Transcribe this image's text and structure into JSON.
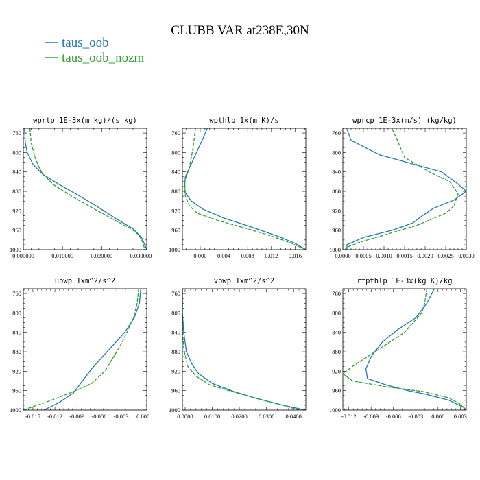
{
  "figure": {
    "title": "CLUBB VAR at238E,30N",
    "legend": [
      {
        "label": "taus_oob",
        "color": "#1f77b4",
        "dash": "solid"
      },
      {
        "label": "taus_oob_nozm",
        "color": "#2ca02c",
        "dash": "dashed"
      }
    ]
  },
  "chart_data": [
    {
      "type": "line",
      "title": "wprtp  1E-3x(m kg)/(s kg)",
      "xlim": [
        0,
        0.0315
      ],
      "ylim": [
        1000,
        750
      ],
      "y_reversed": true,
      "xticks": [
        0,
        0.01,
        0.02,
        0.03
      ],
      "xtick_labels": [
        "0.000000",
        "0.010000",
        "0.020000",
        "0.030000"
      ],
      "yticks": [
        760,
        800,
        840,
        880,
        920,
        960,
        1000
      ],
      "series": [
        {
          "name": "taus_oob",
          "points": [
            [
              0.0003,
              750
            ],
            [
              0.0005,
              780
            ],
            [
              0.001,
              800
            ],
            [
              0.0025,
              825
            ],
            [
              0.005,
              845
            ],
            [
              0.009,
              865
            ],
            [
              0.014,
              888
            ],
            [
              0.019,
              912
            ],
            [
              0.024,
              938
            ],
            [
              0.028,
              957
            ],
            [
              0.0302,
              975
            ],
            [
              0.031,
              990
            ],
            [
              0.0315,
              1000
            ]
          ]
        },
        {
          "name": "taus_oob_nozm",
          "points": [
            [
              0.0017,
              750
            ],
            [
              0.002,
              780
            ],
            [
              0.003,
              810
            ],
            [
              0.004,
              830
            ],
            [
              0.005,
              845
            ],
            [
              0.008,
              868
            ],
            [
              0.013,
              893
            ],
            [
              0.0185,
              918
            ],
            [
              0.0235,
              940
            ],
            [
              0.0275,
              957
            ],
            [
              0.0295,
              970
            ],
            [
              0.0305,
              985
            ],
            [
              0.031,
              1000
            ]
          ]
        }
      ]
    },
    {
      "type": "line",
      "title": "wpthlp  1x(m K)/s",
      "xlim": [
        -0.003,
        0.0178
      ],
      "ylim": [
        1000,
        750
      ],
      "y_reversed": true,
      "xticks": [
        0,
        0.004,
        0.008,
        0.012,
        0.016
      ],
      "xtick_labels": [
        "0.000",
        "0.004",
        "0.008",
        "0.012",
        "0.016"
      ],
      "yticks": [
        760,
        800,
        840,
        880,
        920,
        960,
        1000
      ],
      "series": [
        {
          "name": "taus_oob",
          "points": [
            [
              0.0012,
              750
            ],
            [
              0.0005,
              770
            ],
            [
              -0.001,
              810
            ],
            [
              -0.0025,
              850
            ],
            [
              -0.0027,
              880
            ],
            [
              -0.0015,
              900
            ],
            [
              0.0005,
              917
            ],
            [
              0.004,
              935
            ],
            [
              0.009,
              955
            ],
            [
              0.013,
              972
            ],
            [
              0.016,
              987
            ],
            [
              0.0178,
              1000
            ]
          ]
        },
        {
          "name": "taus_oob_nozm",
          "points": [
            [
              -0.0008,
              750
            ],
            [
              -0.0012,
              790
            ],
            [
              -0.0018,
              830
            ],
            [
              -0.0026,
              860
            ],
            [
              -0.0025,
              890
            ],
            [
              -0.0018,
              910
            ],
            [
              -0.0005,
              925
            ],
            [
              0.003,
              940
            ],
            [
              0.008,
              957
            ],
            [
              0.012,
              972
            ],
            [
              0.015,
              985
            ],
            [
              0.0178,
              1000
            ]
          ]
        }
      ]
    },
    {
      "type": "line",
      "title": "wprcp  1E-3x(m/s) (kg/kg)",
      "xlim": [
        0,
        0.003
      ],
      "ylim": [
        1000,
        750
      ],
      "y_reversed": true,
      "xticks": [
        0,
        0.0005,
        0.001,
        0.0015,
        0.002,
        0.0025,
        0.003
      ],
      "xtick_labels": [
        "0.0000",
        "0.0005",
        "0.0010",
        "0.0015",
        "0.0020",
        "0.0025",
        "0.0030"
      ],
      "yticks": [
        760,
        800,
        840,
        880,
        920,
        960,
        1000
      ],
      "series": [
        {
          "name": "taus_oob",
          "points": [
            [
              0.0001,
              752
            ],
            [
              0.0002,
              775
            ],
            [
              0.0009,
              805
            ],
            [
              0.0024,
              840
            ],
            [
              0.0028,
              865
            ],
            [
              0.003,
              880
            ],
            [
              0.0027,
              898
            ],
            [
              0.0022,
              915
            ],
            [
              0.0019,
              932
            ],
            [
              0.0017,
              945
            ],
            [
              0.0012,
              960
            ],
            [
              0.0005,
              975
            ],
            [
              0.0001,
              990
            ],
            [
              0.0001,
              1000
            ]
          ]
        },
        {
          "name": "taus_oob_nozm",
          "points": [
            [
              0.0012,
              752
            ],
            [
              0.0013,
              770
            ],
            [
              0.0015,
              810
            ],
            [
              0.0021,
              840
            ],
            [
              0.0026,
              860
            ],
            [
              0.0028,
              885
            ],
            [
              0.0027,
              910
            ],
            [
              0.0025,
              925
            ],
            [
              0.0018,
              950
            ],
            [
              0.001,
              970
            ],
            [
              0.0004,
              985
            ],
            [
              0.0001,
              995
            ],
            [
              5e-05,
              1000
            ]
          ]
        }
      ]
    },
    {
      "type": "line",
      "title": "upwp  1xm^2/s^2",
      "xlim": [
        -0.0163,
        0.0005
      ],
      "ylim": [
        1000,
        750
      ],
      "y_reversed": true,
      "xticks": [
        -0.015,
        -0.012,
        -0.009,
        -0.006,
        -0.003,
        0
      ],
      "xtick_labels": [
        "-0.015",
        "-0.012",
        "-0.009",
        "-0.006",
        "-0.003",
        "0.000"
      ],
      "yticks": [
        760,
        800,
        840,
        880,
        920,
        960,
        1000
      ],
      "series": [
        {
          "name": "taus_oob",
          "points": [
            [
              -0.0003,
              750
            ],
            [
              -0.0005,
              780
            ],
            [
              -0.0012,
              810
            ],
            [
              -0.0025,
              840
            ],
            [
              -0.004,
              865
            ],
            [
              -0.0055,
              890
            ],
            [
              -0.007,
              915
            ],
            [
              -0.0085,
              945
            ],
            [
              -0.0095,
              965
            ],
            [
              -0.0115,
              985
            ],
            [
              -0.0135,
              1000
            ]
          ]
        },
        {
          "name": "taus_oob_nozm",
          "points": [
            [
              -0.0006,
              750
            ],
            [
              -0.0008,
              780
            ],
            [
              -0.0013,
              810
            ],
            [
              -0.0022,
              840
            ],
            [
              -0.0032,
              870
            ],
            [
              -0.0042,
              895
            ],
            [
              -0.0052,
              920
            ],
            [
              -0.007,
              945
            ],
            [
              -0.0095,
              962
            ],
            [
              -0.0125,
              980
            ],
            [
              -0.0163,
              1000
            ]
          ]
        }
      ]
    },
    {
      "type": "line",
      "title": "vpwp  1xm^2/s^2",
      "xlim": [
        -0.001,
        0.0445
      ],
      "ylim": [
        1000,
        750
      ],
      "y_reversed": true,
      "xticks": [
        0,
        0.01,
        0.02,
        0.03,
        0.04
      ],
      "xtick_labels": [
        "0.0000",
        "0.0100",
        "0.0200",
        "0.0300",
        "0.0400"
      ],
      "yticks": [
        760,
        800,
        840,
        880,
        920,
        960,
        1000
      ],
      "series": [
        {
          "name": "taus_oob",
          "points": [
            [
              -0.001,
              750
            ],
            [
              -0.001,
              800
            ],
            [
              -0.0005,
              840
            ],
            [
              0.0005,
              880
            ],
            [
              0.0025,
              905
            ],
            [
              0.005,
              925
            ],
            [
              0.01,
              945
            ],
            [
              0.018,
              962
            ],
            [
              0.027,
              977
            ],
            [
              0.036,
              990
            ],
            [
              0.0445,
              1000
            ]
          ]
        },
        {
          "name": "taus_oob_nozm",
          "points": [
            [
              -0.001,
              750
            ],
            [
              -0.001,
              810
            ],
            [
              -0.0008,
              850
            ],
            [
              -0.0003,
              880
            ],
            [
              0.001,
              910
            ],
            [
              0.004,
              930
            ],
            [
              0.009,
              948
            ],
            [
              0.018,
              963
            ],
            [
              0.027,
              977
            ],
            [
              0.036,
              990
            ],
            [
              0.042,
              1000
            ]
          ]
        }
      ]
    },
    {
      "type": "line",
      "title": "rtpthlp  1E-3x(kg K)/kg",
      "xlim": [
        -0.0128,
        0.0038
      ],
      "ylim": [
        1000,
        750
      ],
      "y_reversed": true,
      "xticks": [
        -0.012,
        -0.009,
        -0.006,
        -0.003,
        0,
        0.003
      ],
      "xtick_labels": [
        "-0.012",
        "-0.009",
        "-0.006",
        "-0.003",
        "0.000",
        "0.003"
      ],
      "yticks": [
        760,
        800,
        840,
        880,
        920,
        960,
        1000
      ],
      "series": [
        {
          "name": "taus_oob",
          "points": [
            [
              -0.0005,
              750
            ],
            [
              -0.0015,
              780
            ],
            [
              -0.003,
              810
            ],
            [
              -0.0055,
              835
            ],
            [
              -0.0075,
              860
            ],
            [
              -0.009,
              890
            ],
            [
              -0.0097,
              915
            ],
            [
              -0.0095,
              935
            ],
            [
              -0.007,
              948
            ],
            [
              -0.004,
              960
            ],
            [
              -0.0015,
              968
            ],
            [
              0.0015,
              980
            ],
            [
              0.0035,
              995
            ],
            [
              0.0038,
              1000
            ]
          ]
        },
        {
          "name": "taus_oob_nozm",
          "points": [
            [
              -0.0015,
              750
            ],
            [
              -0.0018,
              780
            ],
            [
              -0.0022,
              800
            ],
            [
              -0.0045,
              840
            ],
            [
              -0.0075,
              870
            ],
            [
              -0.0095,
              890
            ],
            [
              -0.0115,
              910
            ],
            [
              -0.0128,
              925
            ],
            [
              -0.0115,
              940
            ],
            [
              -0.007,
              952
            ],
            [
              -0.002,
              962
            ],
            [
              0.0015,
              975
            ],
            [
              0.003,
              988
            ],
            [
              0.0038,
              1000
            ]
          ]
        }
      ]
    }
  ]
}
